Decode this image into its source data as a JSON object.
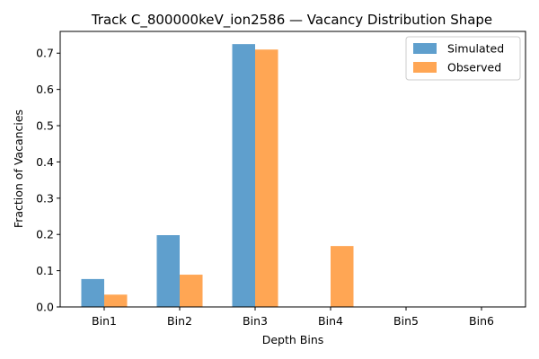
{
  "chart_data": {
    "type": "bar",
    "title": "Track C_800000keV_ion2586 — Vacancy Distribution Shape",
    "xlabel": "Depth Bins",
    "ylabel": "Fraction of Vacancies",
    "categories": [
      "Bin1",
      "Bin2",
      "Bin3",
      "Bin4",
      "Bin5",
      "Bin6"
    ],
    "series": [
      {
        "name": "Simulated",
        "color": "#5f9fcd",
        "values": [
          0.077,
          0.198,
          0.725,
          0.0,
          0.0,
          0.0
        ]
      },
      {
        "name": "Observed",
        "color": "#ffa654",
        "values": [
          0.034,
          0.089,
          0.71,
          0.168,
          0.0,
          0.0
        ]
      }
    ],
    "ylim": [
      0,
      0.76
    ],
    "yticks": [
      0.0,
      0.1,
      0.2,
      0.3,
      0.4,
      0.5,
      0.6,
      0.7
    ],
    "ytick_labels": [
      "0.0",
      "0.1",
      "0.2",
      "0.3",
      "0.4",
      "0.5",
      "0.6",
      "0.7"
    ],
    "grid": false,
    "legend_position": "top-right"
  }
}
